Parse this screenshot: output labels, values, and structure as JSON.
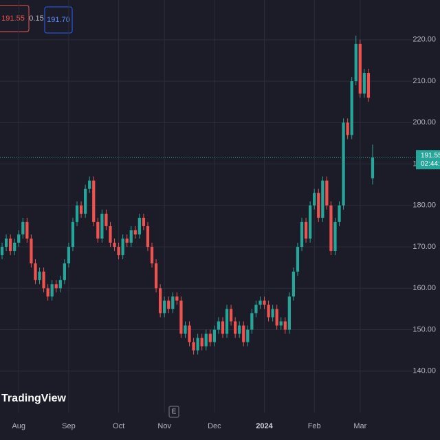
{
  "chart_data": {
    "type": "candlestick",
    "categories": [
      null,
      null,
      null,
      null,
      "Aug",
      null,
      null,
      null,
      null,
      null,
      null,
      null,
      null,
      null,
      null,
      null,
      "Sep",
      null,
      null,
      null,
      null,
      null,
      null,
      null,
      null,
      null,
      null,
      null,
      "Oct",
      null,
      null,
      null,
      null,
      null,
      null,
      null,
      null,
      null,
      null,
      "Nov",
      null,
      null,
      null,
      null,
      null,
      null,
      null,
      null,
      null,
      null,
      null,
      "Dec",
      null,
      null,
      null,
      null,
      null,
      null,
      null,
      null,
      null,
      null,
      null,
      "2024",
      null,
      null,
      null,
      null,
      null,
      null,
      null,
      null,
      null,
      null,
      null,
      "Feb",
      null,
      null,
      null,
      null,
      null,
      null,
      null,
      null,
      null,
      null,
      "Mar",
      null,
      null,
      null
    ],
    "open": [
      168,
      170,
      172,
      169,
      171,
      173,
      176,
      172,
      166,
      162,
      164,
      160,
      158,
      161,
      160,
      162,
      166,
      170,
      176,
      180,
      178,
      184,
      186,
      176,
      172,
      178,
      175,
      171,
      170,
      168,
      172,
      171,
      174,
      173,
      177,
      175,
      170,
      166,
      160,
      154,
      157,
      155,
      158,
      157,
      149,
      151,
      147,
      145,
      148,
      146,
      149,
      147,
      150,
      152,
      149,
      155,
      152,
      149,
      151,
      147,
      150,
      154,
      156,
      157,
      156,
      153,
      155,
      151,
      152,
      150,
      158,
      164,
      170,
      176,
      172,
      180,
      183,
      177,
      186,
      180,
      169,
      176,
      180,
      200,
      197,
      210,
      219,
      207,
      212,
      186.55
    ],
    "high": [
      171,
      173,
      173,
      172,
      174,
      177,
      177,
      173,
      167,
      165,
      165,
      161,
      162,
      162,
      163,
      167,
      171,
      177,
      181,
      181,
      185,
      187,
      187,
      177,
      179,
      179,
      176,
      172,
      171,
      173,
      173,
      175,
      175,
      178,
      178,
      176,
      171,
      167,
      161,
      158,
      158,
      159,
      159,
      158,
      152,
      152,
      148,
      149,
      149,
      150,
      150,
      151,
      153,
      153,
      156,
      156,
      153,
      152,
      152,
      151,
      155,
      157,
      158,
      158,
      157,
      156,
      156,
      153,
      153,
      159,
      165,
      171,
      177,
      177,
      181,
      184,
      184,
      187,
      187,
      181,
      177,
      181,
      201,
      201,
      211,
      221,
      220,
      213,
      213,
      194.7
    ],
    "low": [
      167,
      169,
      168,
      168,
      170,
      172,
      171,
      165,
      161,
      161,
      159,
      157,
      157,
      159,
      159,
      161,
      165,
      169,
      175,
      177,
      177,
      183,
      175,
      171,
      171,
      174,
      170,
      169,
      167,
      167,
      170,
      170,
      172,
      172,
      174,
      169,
      165,
      159,
      153,
      153,
      154,
      154,
      156,
      148,
      148,
      146,
      144,
      144,
      145,
      145,
      146,
      146,
      149,
      148,
      148,
      151,
      148,
      148,
      146,
      146,
      149,
      153,
      155,
      155,
      152,
      152,
      150,
      150,
      149,
      149,
      157,
      163,
      169,
      171,
      171,
      179,
      176,
      176,
      179,
      168,
      168,
      175,
      179,
      196,
      196,
      209,
      206,
      206,
      205,
      185.05
    ],
    "close": [
      170,
      172,
      169,
      171,
      173,
      176,
      172,
      166,
      162,
      164,
      160,
      158,
      161,
      160,
      162,
      166,
      170,
      176,
      180,
      178,
      184,
      186,
      176,
      172,
      178,
      175,
      171,
      170,
      168,
      172,
      171,
      174,
      173,
      177,
      175,
      170,
      166,
      160,
      154,
      157,
      155,
      158,
      157,
      149,
      151,
      147,
      145,
      148,
      146,
      149,
      147,
      150,
      152,
      149,
      155,
      152,
      149,
      151,
      147,
      150,
      154,
      156,
      157,
      156,
      153,
      155,
      151,
      152,
      150,
      158,
      164,
      170,
      176,
      172,
      180,
      183,
      177,
      186,
      180,
      169,
      176,
      180,
      200,
      197,
      210,
      219,
      207,
      212,
      206,
      191.55
    ],
    "up_color": "#26a69a",
    "down_color": "#ef5350",
    "ylim": [
      130,
      229.6
    ],
    "yticks": [
      {
        "value": 140,
        "label": "140.00"
      },
      {
        "value": 150,
        "label": "150.00"
      },
      {
        "value": 160,
        "label": "160.00"
      },
      {
        "value": 170,
        "label": "170.00"
      },
      {
        "value": 180,
        "label": "180.00"
      },
      {
        "value": 190,
        "label": "190.00"
      },
      {
        "value": 200,
        "label": "200.00"
      },
      {
        "value": 210,
        "label": "210.00"
      },
      {
        "value": 220,
        "label": "220.00"
      }
    ],
    "grid": true,
    "last_price": 191.55,
    "countdown": "02:44:1",
    "sell_price": 191.55,
    "spread": 0.15,
    "buy_price": 191.7,
    "buy_price_label": "191.70"
  },
  "brand": "TradingView",
  "toolbar_button": "E"
}
